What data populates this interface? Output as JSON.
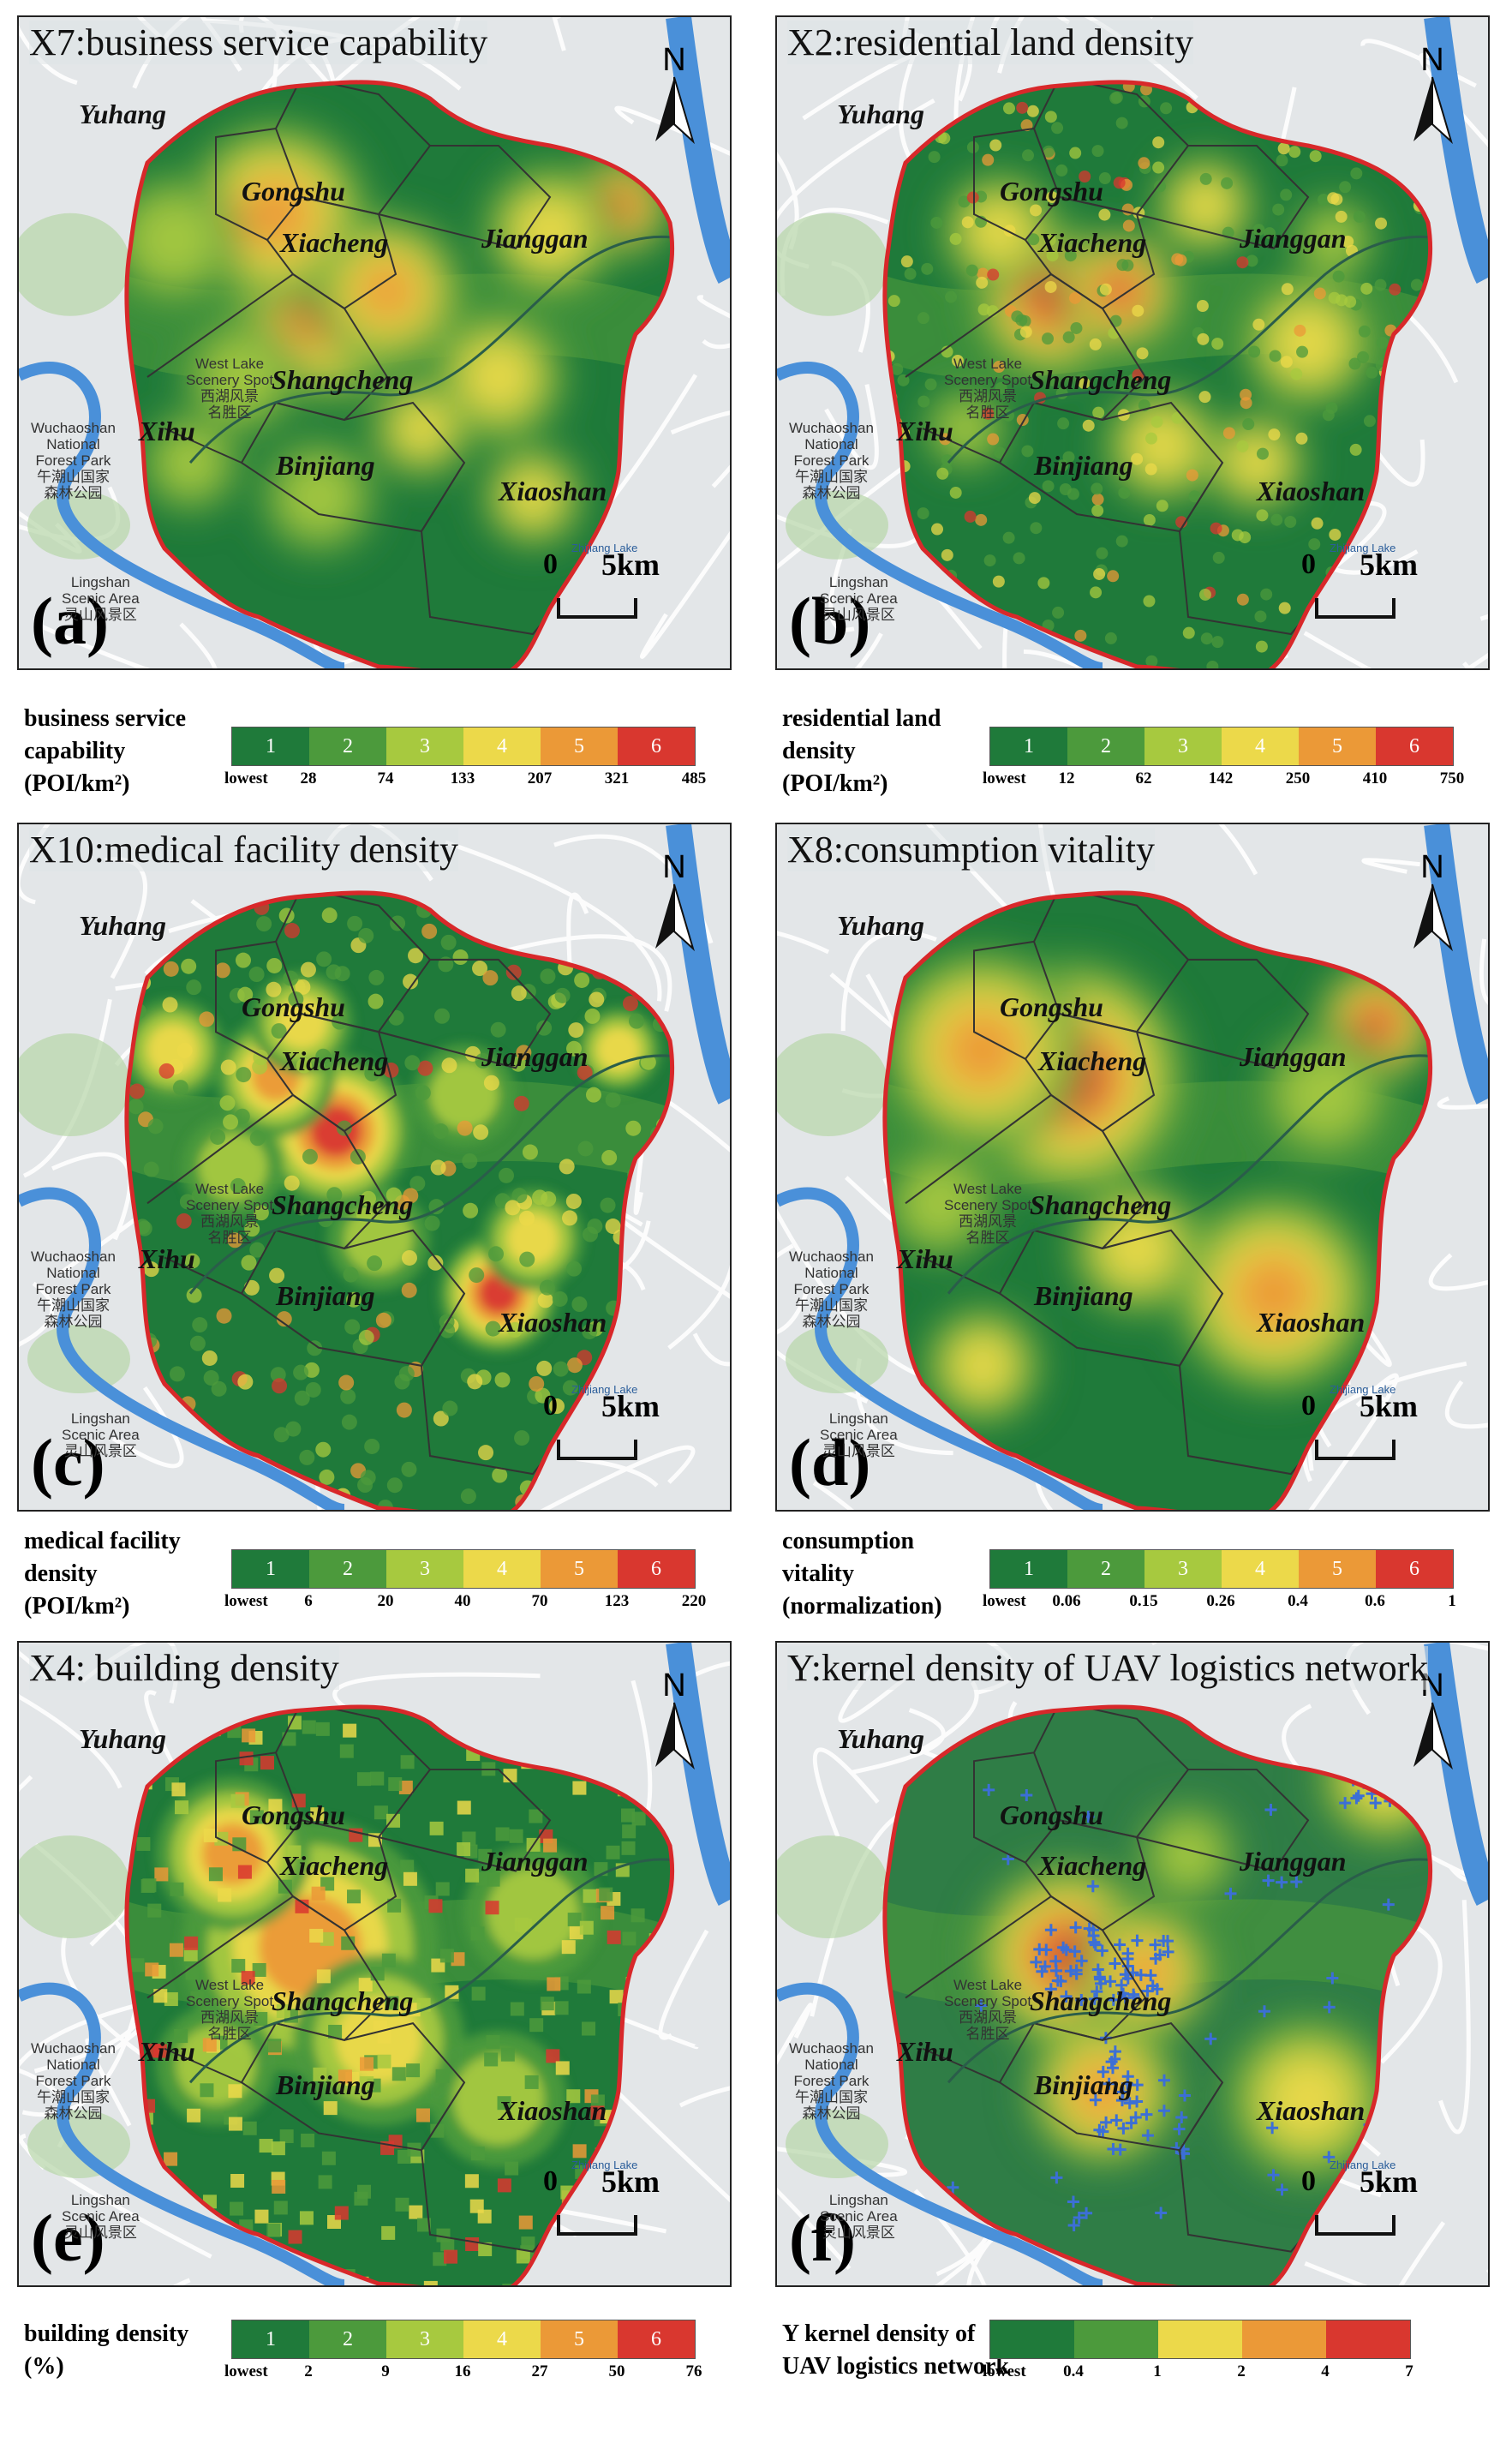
{
  "panels": [
    {
      "id": "a",
      "title": "X7:business service capability",
      "letter": "(a)",
      "legend": {
        "title_lines": [
          "business service",
          "capability"
        ],
        "unit": "(POI/km²)",
        "classes": [
          "1",
          "2",
          "3",
          "4",
          "5",
          "6"
        ],
        "ticks": [
          "lowest",
          "28",
          "74",
          "133",
          "207",
          "321",
          "485"
        ]
      }
    },
    {
      "id": "b",
      "title": "X2:residential land density",
      "letter": "(b)",
      "legend": {
        "title_lines": [
          "residential land",
          "density"
        ],
        "unit": "(POI/km²)",
        "classes": [
          "1",
          "2",
          "3",
          "4",
          "5",
          "6"
        ],
        "ticks": [
          "lowest",
          "12",
          "62",
          "142",
          "250",
          "410",
          "750"
        ]
      }
    },
    {
      "id": "c",
      "title": "X10:medical facility density",
      "letter": "(c)",
      "legend": {
        "title_lines": [
          "medical facility",
          "density"
        ],
        "unit": "(POI/km²)",
        "classes": [
          "1",
          "2",
          "3",
          "4",
          "5",
          "6"
        ],
        "ticks": [
          "lowest",
          "6",
          "20",
          "40",
          "70",
          "123",
          "220"
        ]
      }
    },
    {
      "id": "d",
      "title": "X8:consumption vitality",
      "letter": "(d)",
      "legend": {
        "title_lines": [
          "consumption",
          "vitality"
        ],
        "unit": "(normalization)",
        "classes": [
          "1",
          "2",
          "3",
          "4",
          "5",
          "6"
        ],
        "ticks": [
          "lowest",
          "0.06",
          "0.15",
          "0.26",
          "0.4",
          "0.6",
          "1"
        ]
      }
    },
    {
      "id": "e",
      "title": "X4: building density",
      "letter": "(e)",
      "legend": {
        "title_lines": [
          "building density"
        ],
        "unit": "(%)",
        "classes": [
          "1",
          "2",
          "3",
          "4",
          "5",
          "6"
        ],
        "ticks": [
          "lowest",
          "2",
          "9",
          "16",
          "27",
          "50",
          "76"
        ]
      }
    },
    {
      "id": "f",
      "title": "Y:kernel density of UAV logistics network",
      "letter": "(f)",
      "legend": {
        "title_lines": [
          "Y kernel density of",
          "UAV logistics network"
        ],
        "unit": "",
        "classes": [
          "",
          "",
          "",
          "",
          "",
          ""
        ],
        "ticks": [
          "lowest",
          "0.4",
          "1",
          "2",
          "4",
          "7"
        ]
      }
    }
  ],
  "districts": [
    "Yuhang",
    "Gongshu",
    "Xiacheng",
    "Jianggan",
    "Shangcheng",
    "Xihu",
    "Binjiang",
    "Xiaoshan"
  ],
  "places": {
    "west_lake": [
      "West Lake",
      "Scenery Spot",
      "西湖风景",
      "名胜区"
    ],
    "wuchaoshan": [
      "Wuchaoshan",
      "National",
      "Forest Park",
      "午潮山国家",
      "森林公园"
    ],
    "lingshan": [
      "Lingshan",
      "Scenic Area",
      "灵山风景区"
    ],
    "zhijiang": "Zhijiang Lake"
  },
  "scale": {
    "zero": "0",
    "five": "5km"
  },
  "north": "N",
  "colors": {
    "c1": "#1f7a3a",
    "c2": "#4c9a3c",
    "c3": "#a7c93f",
    "c4": "#ecd94a",
    "c5": "#eb9937",
    "c6": "#d9372f",
    "boundary": "#d8282a",
    "water": "#4a90d9",
    "base": "#e3e6e8",
    "road": "#ffffff"
  }
}
